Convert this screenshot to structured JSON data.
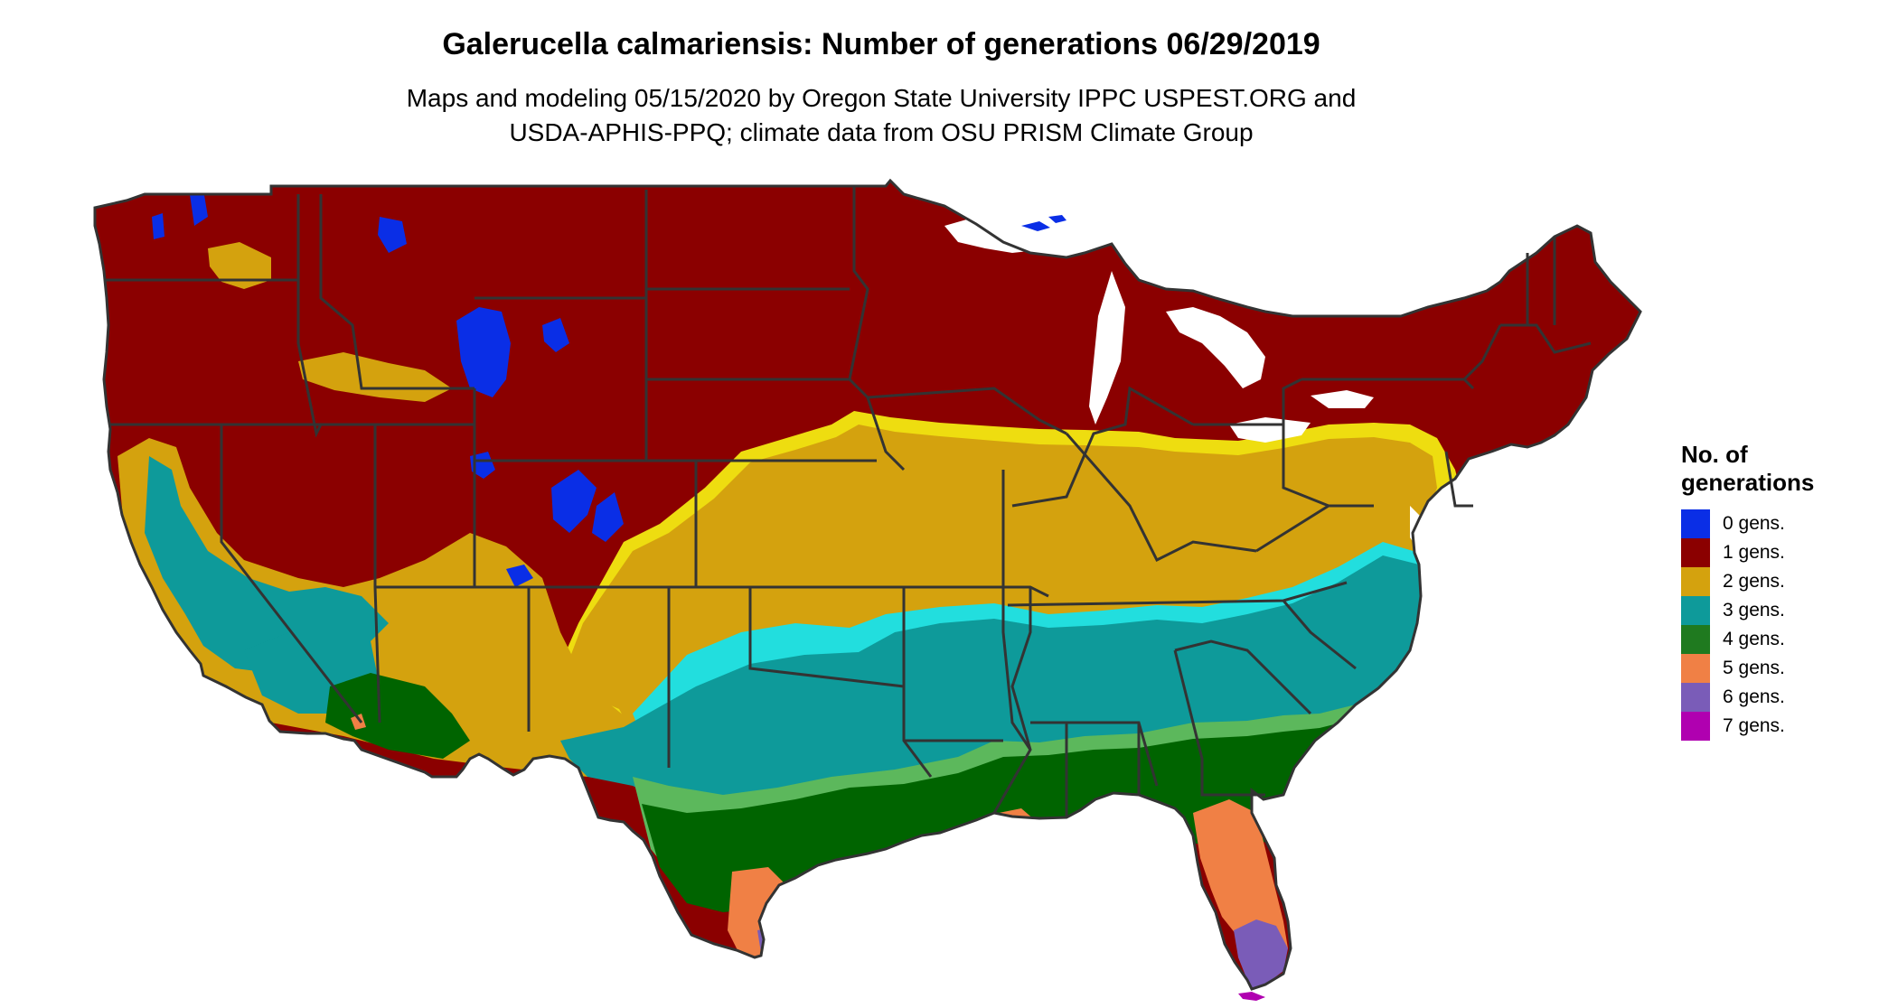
{
  "title": "Galerucella calmariensis: Number of generations 06/29/2019",
  "subtitle": {
    "line1": "Maps and modeling 05/15/2020 by Oregon State University IPPC USPEST.ORG and",
    "line2": "USDA-APHIS-PPQ; climate data from OSU PRISM Climate Group"
  },
  "legend": {
    "title_line1": "No. of",
    "title_line2": "generations",
    "items": [
      {
        "label": "0 gens.",
        "color": "#0a2ee6"
      },
      {
        "label": "1 gens.",
        "color": "#8b0000"
      },
      {
        "label": "2 gens.",
        "color": "#d4a20e"
      },
      {
        "label": "3 gens.",
        "color": "#0e9a9a"
      },
      {
        "label": "4 gens.",
        "color": "#1f7a1f"
      },
      {
        "label": "5 gens.",
        "color": "#f08045"
      },
      {
        "label": "6 gens.",
        "color": "#7a5cb8"
      },
      {
        "label": "7 gens.",
        "color": "#b000b0"
      }
    ]
  },
  "map": {
    "region": "Contiguous United States",
    "colors": {
      "gen0": "#0a2ee6",
      "gen1": "#8b0000",
      "gen2": "#d4a20e",
      "gen2_light": "#eedd10",
      "gen3": "#0e9a9a",
      "gen3_light": "#22dede",
      "gen4": "#006400",
      "gen4_light": "#5cb85c",
      "gen5": "#f08045",
      "gen6": "#7a5cb8",
      "gen7": "#b000b0",
      "water": "#ffffff",
      "borders": "#333333"
    }
  }
}
